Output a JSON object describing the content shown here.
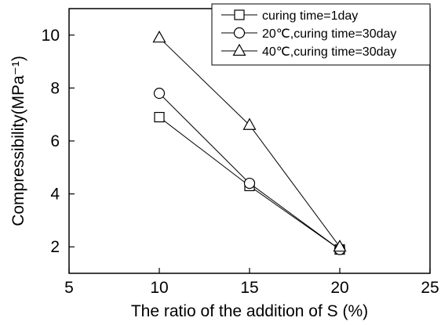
{
  "chart_data": {
    "type": "line",
    "xlabel": "The ratio of the addition of S (%)",
    "ylabel": "Compressibility(MPa⁻¹)",
    "xlim": [
      5,
      25
    ],
    "ylim": [
      1,
      11
    ],
    "xticks": [
      5,
      10,
      15,
      20,
      25
    ],
    "yticks": [
      2,
      4,
      6,
      8,
      10
    ],
    "x": [
      10,
      15,
      20
    ],
    "grid": false,
    "legend_position": "top-right",
    "line_color": "#000000",
    "series": [
      {
        "name": "curing time=1day",
        "marker": "square",
        "values": [
          6.9,
          4.3,
          1.9
        ]
      },
      {
        "name": "20℃,curing time=30day",
        "marker": "circle",
        "values": [
          7.8,
          4.4,
          1.9
        ]
      },
      {
        "name": "40℃,curing time=30day",
        "marker": "triangle",
        "values": [
          9.9,
          6.6,
          2.0
        ]
      }
    ]
  }
}
